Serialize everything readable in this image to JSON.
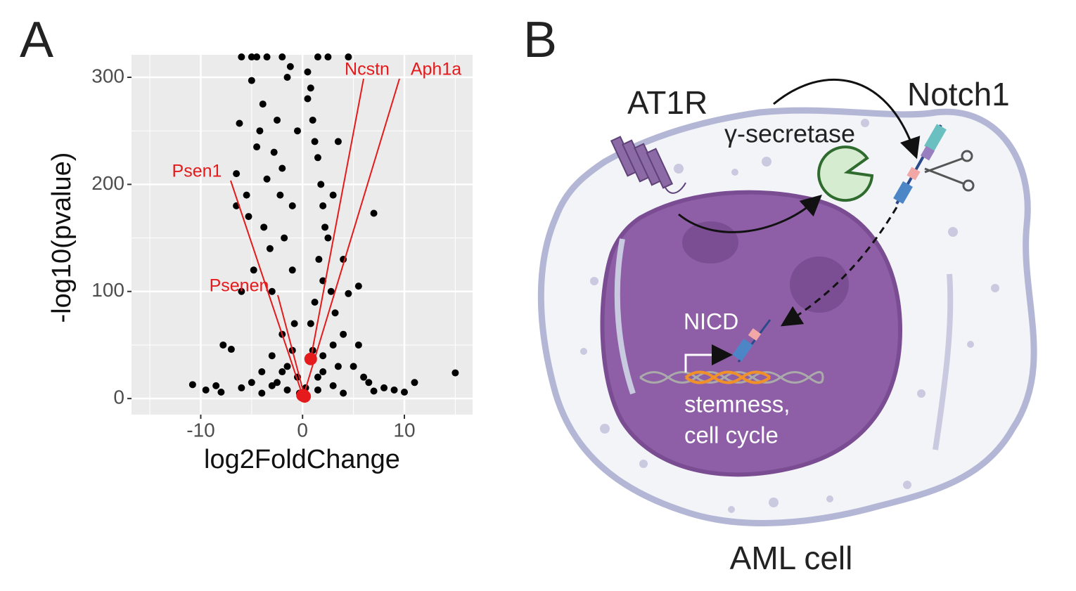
{
  "panel_labels": [
    "A",
    "B"
  ],
  "chart_data": {
    "type": "scatter",
    "xlabel": "log2FoldChange",
    "ylabel": "-log10(pvalue)",
    "xlim": [
      -16.8,
      16.7
    ],
    "ylim": [
      -15,
      321
    ],
    "xticks": [
      -10,
      0,
      10
    ],
    "yticks": [
      0,
      100,
      200,
      300
    ],
    "xminor": [
      -15,
      -5,
      5,
      15
    ],
    "yminor": [
      50,
      150,
      250
    ],
    "grid": true,
    "color": "#000000",
    "background": "#ebebeb",
    "x": [
      -10.8,
      -9.5,
      -8,
      -7,
      -6.5,
      -6.5,
      -6.2,
      -5.5,
      -5,
      -5.3,
      -4.8,
      -4.5,
      -4.2,
      -3.9,
      -3.5,
      -3.8,
      -3.2,
      -3,
      -2.8,
      -2.5,
      -2.2,
      -2,
      -1.8,
      -1.5,
      -1.2,
      -1,
      -0.8,
      -2,
      -3,
      -4,
      -5,
      -6,
      -1.5,
      -0.5,
      -2.5,
      -7.8,
      -6,
      0.5,
      0.8,
      1,
      1.2,
      1.5,
      1.8,
      2,
      2.2,
      2.5,
      3,
      3.5,
      1.6,
      2,
      1.2,
      0.8,
      2.8,
      3.2,
      4,
      5,
      6,
      7,
      6.5,
      8,
      9,
      11,
      15,
      4.5,
      5.5,
      3,
      2,
      1.5,
      -3.5,
      -4.5,
      -2,
      1.5,
      2.5,
      4.5,
      -6,
      -5,
      0.5,
      -0.5,
      -1,
      4,
      5.5,
      3.5,
      0.3,
      -0.3,
      -8.5,
      -4,
      4,
      7,
      10,
      -1,
      1,
      -2,
      2,
      -3,
      3,
      -1.5,
      1.5
    ],
    "y": [
      13,
      8,
      6,
      46,
      180,
      210,
      257,
      190,
      297,
      170,
      120,
      235,
      250,
      275,
      205,
      160,
      140,
      100,
      230,
      260,
      190,
      215,
      150,
      300,
      310,
      120,
      70,
      60,
      40,
      25,
      15,
      10,
      30,
      20,
      15,
      50,
      100,
      280,
      290,
      260,
      240,
      225,
      200,
      180,
      160,
      150,
      190,
      240,
      130,
      110,
      90,
      70,
      100,
      80,
      60,
      30,
      20,
      173,
      15,
      10,
      8,
      15,
      24,
      98,
      50,
      50,
      40,
      20,
      319,
      319,
      319,
      319,
      319,
      319,
      319,
      319,
      305,
      250,
      180,
      130,
      105,
      30,
      10,
      5,
      12,
      5,
      5,
      7,
      6,
      45,
      45,
      25,
      25,
      12,
      12,
      8,
      8
    ],
    "highlight_color": "#e41a1c",
    "annotations": [
      {
        "label": "Psen1",
        "x": 0,
        "y": 3
      },
      {
        "label": "Psenen",
        "x": 0.2,
        "y": 2
      },
      {
        "label": "Ncstn",
        "x": 0.8,
        "y": 37
      },
      {
        "label": "Aph1a",
        "x": 0.1,
        "y": 3
      }
    ]
  },
  "diagram": {
    "receptor": "AT1R",
    "notch": "Notch1",
    "enzyme": "γ-secretase",
    "nicd": "NICD",
    "targets": [
      "stemness,",
      "cell cycle"
    ],
    "cell": "AML cell"
  }
}
